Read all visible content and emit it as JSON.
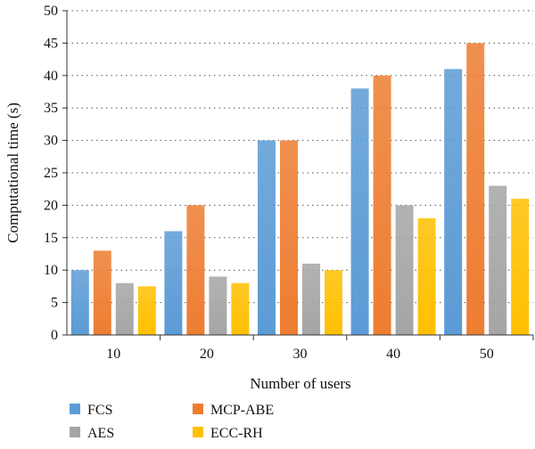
{
  "chart_data": {
    "type": "bar",
    "title": "",
    "xlabel": "Number of users",
    "ylabel": "Computational time (s)",
    "ylim": [
      0,
      50
    ],
    "yticks": [
      0,
      5,
      10,
      15,
      20,
      25,
      30,
      35,
      40,
      45,
      50
    ],
    "grid": "horizontal-dotted",
    "legend_position": "bottom",
    "categories": [
      "10",
      "20",
      "30",
      "40",
      "50"
    ],
    "series": [
      {
        "name": "FCS",
        "color": "#5b9bd5",
        "values": [
          10,
          16,
          30,
          38,
          41
        ]
      },
      {
        "name": "MCP-ABE",
        "color": "#ed7d31",
        "values": [
          13,
          20,
          30,
          40,
          45
        ]
      },
      {
        "name": "AES",
        "color": "#a5a5a5",
        "values": [
          8,
          9,
          11,
          20,
          23
        ]
      },
      {
        "name": "ECC-RH",
        "color": "#ffc000",
        "values": [
          7.5,
          8,
          10,
          18,
          21
        ]
      }
    ]
  }
}
